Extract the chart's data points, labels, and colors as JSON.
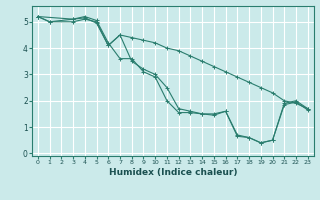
{
  "xlabel": "Humidex (Indice chaleur)",
  "ylabel": "",
  "background_color": "#cbeaea",
  "grid_color": "#ffffff",
  "line_color": "#2a7d6e",
  "xlim": [
    -0.5,
    23.5
  ],
  "ylim": [
    -0.1,
    5.6
  ],
  "xticks": [
    0,
    1,
    2,
    3,
    4,
    5,
    6,
    7,
    8,
    9,
    10,
    11,
    12,
    13,
    14,
    15,
    16,
    17,
    18,
    19,
    20,
    21,
    22,
    23
  ],
  "yticks": [
    0,
    1,
    2,
    3,
    4,
    5
  ],
  "series": [
    {
      "x": [
        0,
        1,
        3,
        4,
        5,
        6,
        7,
        8,
        9,
        10,
        11,
        12,
        13,
        14,
        15,
        16,
        17,
        18,
        19,
        20,
        21,
        22,
        23
      ],
      "y": [
        5.2,
        5.0,
        5.0,
        5.1,
        5.0,
        4.1,
        4.5,
        3.5,
        3.2,
        3.0,
        2.5,
        1.7,
        1.6,
        1.5,
        1.5,
        1.6,
        0.7,
        0.6,
        0.4,
        0.5,
        1.9,
        2.0,
        1.7
      ]
    },
    {
      "x": [
        0,
        1,
        3,
        4,
        5,
        6,
        7,
        8,
        9,
        10,
        11,
        12,
        13,
        14,
        15,
        16,
        17,
        18,
        19,
        20,
        21,
        22,
        23
      ],
      "y": [
        5.2,
        5.0,
        5.1,
        5.2,
        5.05,
        4.2,
        3.6,
        3.6,
        3.1,
        2.9,
        2.0,
        1.55,
        1.55,
        1.5,
        1.45,
        1.6,
        0.65,
        0.6,
        0.4,
        0.5,
        1.85,
        1.95,
        1.65
      ]
    },
    {
      "x": [
        0,
        3,
        4,
        5,
        6,
        7,
        8,
        9,
        10,
        11,
        12,
        13,
        14,
        15,
        16,
        17,
        18,
        19,
        20,
        21,
        22,
        23
      ],
      "y": [
        5.2,
        5.1,
        5.15,
        4.95,
        4.1,
        4.5,
        4.4,
        4.3,
        4.2,
        4.0,
        3.9,
        3.7,
        3.5,
        3.3,
        3.1,
        2.9,
        2.7,
        2.5,
        2.3,
        2.0,
        1.9,
        1.7
      ]
    }
  ]
}
